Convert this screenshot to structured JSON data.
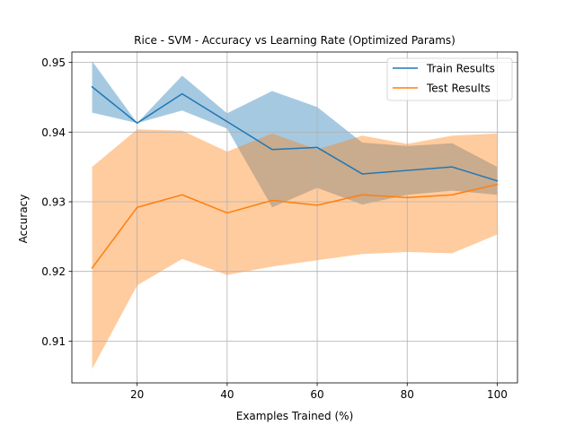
{
  "chart_data": {
    "type": "line",
    "title": "Rice - SVM - Accuracy vs Learning Rate (Optimized Params)",
    "xlabel": "Examples Trained (%)",
    "ylabel": "Accuracy",
    "xlim": [
      5.5,
      104.5
    ],
    "ylim": [
      0.904,
      0.9515
    ],
    "xticks": [
      20,
      40,
      60,
      80,
      100
    ],
    "xtick_labels": [
      "20",
      "40",
      "60",
      "80",
      "100"
    ],
    "yticks": [
      0.91,
      0.92,
      0.93,
      0.94,
      0.95
    ],
    "ytick_labels": [
      "0.91",
      "0.92",
      "0.93",
      "0.94",
      "0.95"
    ],
    "grid": true,
    "legend_position": "top-right",
    "x": [
      10,
      20,
      30,
      40,
      50,
      60,
      70,
      80,
      90,
      100
    ],
    "series": [
      {
        "name": "Train Results",
        "color": "#1f77b4",
        "values": [
          0.9465,
          0.9413,
          0.9455,
          0.9415,
          0.9375,
          0.9378,
          0.934,
          0.9345,
          0.935,
          0.933
        ],
        "lower": [
          0.9428,
          0.9413,
          0.9431,
          0.9405,
          0.9292,
          0.932,
          0.9296,
          0.931,
          0.9316,
          0.931
        ],
        "upper": [
          0.9502,
          0.9413,
          0.9481,
          0.9427,
          0.9459,
          0.9436,
          0.9385,
          0.938,
          0.9384,
          0.935
        ]
      },
      {
        "name": "Test Results",
        "color": "#ff7f0e",
        "values": [
          0.9205,
          0.9292,
          0.931,
          0.9284,
          0.9302,
          0.9295,
          0.931,
          0.9306,
          0.931,
          0.9325
        ],
        "lower": [
          0.906,
          0.918,
          0.9218,
          0.9195,
          0.9207,
          0.9216,
          0.9225,
          0.9228,
          0.9226,
          0.9253
        ],
        "upper": [
          0.935,
          0.9404,
          0.9402,
          0.9372,
          0.9398,
          0.9375,
          0.9395,
          0.9383,
          0.9395,
          0.9398
        ]
      }
    ]
  }
}
